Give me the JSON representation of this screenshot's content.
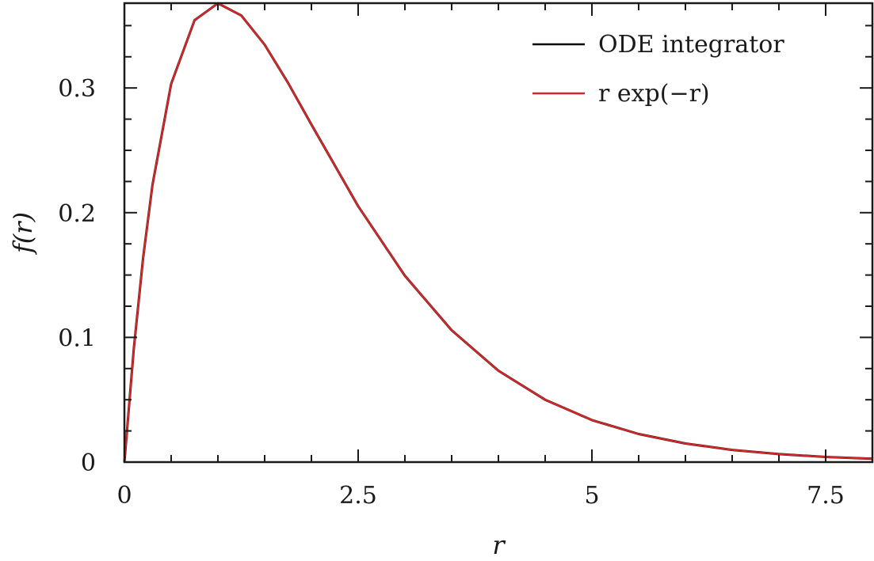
{
  "chart_data": {
    "type": "line",
    "title": "",
    "xlabel": "r",
    "ylabel": "f(r)",
    "xlim": [
      0,
      8
    ],
    "ylim": [
      0,
      0.368
    ],
    "xticks": [
      0,
      2.5,
      5,
      7.5
    ],
    "xtick_labels": [
      "0",
      "2.5",
      "5",
      "7.5"
    ],
    "yticks": [
      0,
      0.1,
      0.2,
      0.3
    ],
    "ytick_labels": [
      "0",
      "0.1",
      "0.2",
      "0.3"
    ],
    "grid": false,
    "legend_position": "top-right",
    "series": [
      {
        "name": "ODE integrator",
        "color": "#000000",
        "x": [
          0,
          0.1,
          0.2,
          0.3,
          0.5,
          0.75,
          1.0,
          1.25,
          1.5,
          1.75,
          2.0,
          2.5,
          3.0,
          3.5,
          4.0,
          4.5,
          5.0,
          5.5,
          6.0,
          6.5,
          7.0,
          7.5,
          8.0
        ],
        "y": [
          0,
          0.0905,
          0.1637,
          0.2222,
          0.3033,
          0.3543,
          0.3679,
          0.3581,
          0.3347,
          0.3041,
          0.2707,
          0.2052,
          0.1494,
          0.1057,
          0.0733,
          0.05,
          0.0337,
          0.0225,
          0.0149,
          0.0098,
          0.0064,
          0.0041,
          0.0027
        ]
      },
      {
        "name": "r exp(−r)",
        "color": "#d62728",
        "x": [
          0,
          0.1,
          0.2,
          0.3,
          0.5,
          0.75,
          1.0,
          1.25,
          1.5,
          1.75,
          2.0,
          2.5,
          3.0,
          3.5,
          4.0,
          4.5,
          5.0,
          5.5,
          6.0,
          6.5,
          7.0,
          7.5,
          8.0
        ],
        "y": [
          0,
          0.0905,
          0.1637,
          0.2222,
          0.3033,
          0.3543,
          0.3679,
          0.3581,
          0.3347,
          0.3041,
          0.2707,
          0.2052,
          0.1494,
          0.1057,
          0.0733,
          0.05,
          0.0337,
          0.0225,
          0.0149,
          0.0098,
          0.0064,
          0.0041,
          0.0027
        ]
      }
    ]
  }
}
